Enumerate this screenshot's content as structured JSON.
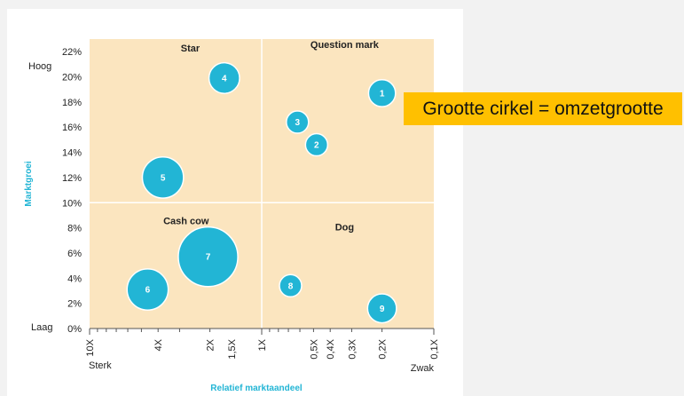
{
  "note": "Grootte cirkel = omzetgrootte",
  "chart_data": {
    "type": "scatter",
    "subtype": "bubble",
    "xlabel": "Relatief marktaandeel",
    "ylabel": "Marktgroei",
    "x_scale": "log",
    "x_reversed": true,
    "xlim": [
      10,
      0.1
    ],
    "ylim": [
      0,
      23
    ],
    "x_ticks": [
      {
        "value": 10,
        "label": "10X"
      },
      {
        "value": 4,
        "label": "4X"
      },
      {
        "value": 2,
        "label": "2X"
      },
      {
        "value": 1.5,
        "label": "1,5X"
      },
      {
        "value": 1,
        "label": "1X"
      },
      {
        "value": 0.5,
        "label": "0,5X"
      },
      {
        "value": 0.4,
        "label": "0,4X"
      },
      {
        "value": 0.3,
        "label": "0,3X"
      },
      {
        "value": 0.2,
        "label": "0,2X"
      },
      {
        "value": 0.1,
        "label": "0,1X"
      }
    ],
    "y_ticks": [
      {
        "value": 0,
        "label": "0%"
      },
      {
        "value": 2,
        "label": "2%"
      },
      {
        "value": 4,
        "label": "4%"
      },
      {
        "value": 6,
        "label": "6%"
      },
      {
        "value": 8,
        "label": "8%"
      },
      {
        "value": 10,
        "label": "10%"
      },
      {
        "value": 12,
        "label": "12%"
      },
      {
        "value": 14,
        "label": "14%"
      },
      {
        "value": 16,
        "label": "16%"
      },
      {
        "value": 18,
        "label": "18%"
      },
      {
        "value": 20,
        "label": "20%"
      },
      {
        "value": 22,
        "label": "22%"
      }
    ],
    "x_end_labels": {
      "left": "Sterk",
      "right": "Zwak"
    },
    "y_end_labels": {
      "top": "Hoog",
      "bottom": "Laag"
    },
    "divider": {
      "x": 1,
      "y": 10
    },
    "quadrants": [
      {
        "name": "Star",
        "x": 2.6,
        "y": 22
      },
      {
        "name": "Question mark",
        "x": 0.33,
        "y": 22.3
      },
      {
        "name": "Cash cow",
        "x": 2.75,
        "y": 8.3
      },
      {
        "name": "Dog",
        "x": 0.33,
        "y": 7.8
      }
    ],
    "bubbles": [
      {
        "label": "1",
        "x": 0.2,
        "y": 18.7,
        "size": 2
      },
      {
        "label": "2",
        "x": 0.48,
        "y": 14.6,
        "size": 1
      },
      {
        "label": "3",
        "x": 0.62,
        "y": 16.4,
        "size": 1
      },
      {
        "label": "4",
        "x": 1.65,
        "y": 19.9,
        "size": 3
      },
      {
        "label": "5",
        "x": 3.75,
        "y": 12.0,
        "size": 7
      },
      {
        "label": "6",
        "x": 4.6,
        "y": 3.1,
        "size": 7
      },
      {
        "label": "7",
        "x": 2.05,
        "y": 5.7,
        "size": 18
      },
      {
        "label": "8",
        "x": 0.68,
        "y": 3.4,
        "size": 1
      },
      {
        "label": "9",
        "x": 0.2,
        "y": 1.6,
        "size": 2.5
      }
    ],
    "colors": {
      "background": "#fbe5bf",
      "bubble": "#22b5d5",
      "divider": "#ffffff"
    }
  }
}
